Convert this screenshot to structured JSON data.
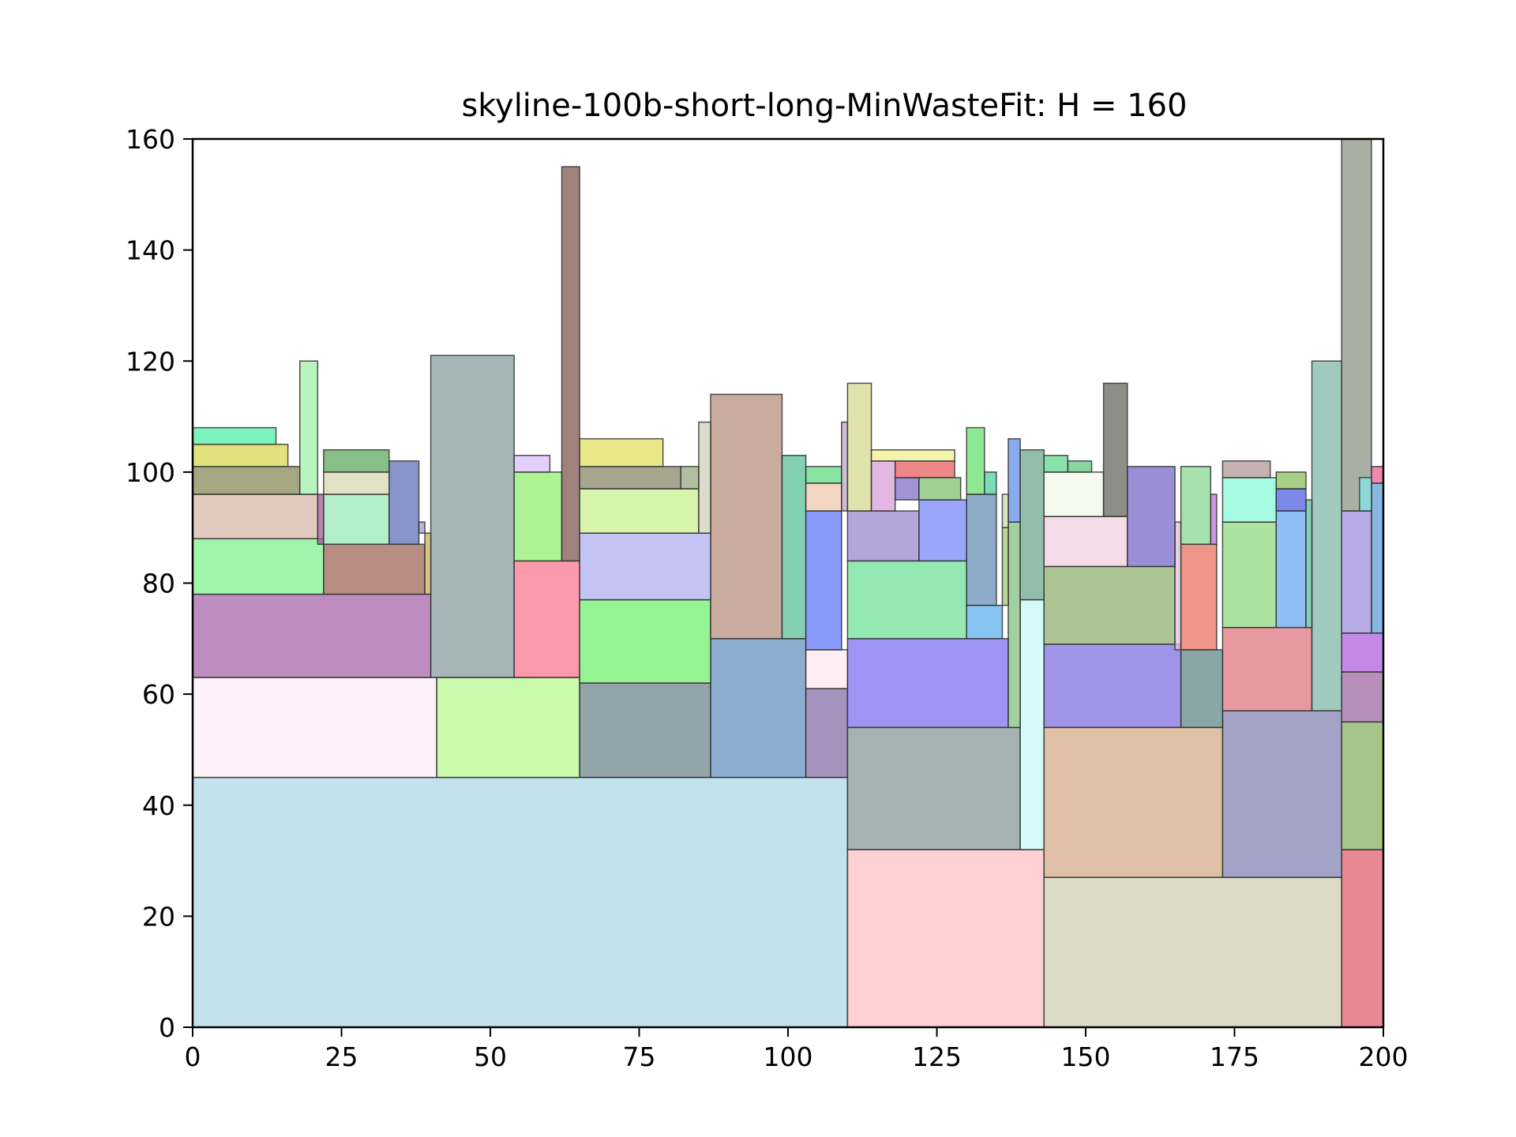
{
  "chart_data": {
    "type": "rectangles",
    "title": "skyline-100b-short-long-MinWasteFit: H = 160",
    "xlabel": "",
    "ylabel": "",
    "xlim": [
      0,
      200
    ],
    "ylim": [
      0,
      160
    ],
    "x_ticks": [
      "0",
      "25",
      "50",
      "75",
      "100",
      "125",
      "150",
      "175",
      "200"
    ],
    "y_ticks": [
      "0",
      "20",
      "40",
      "60",
      "80",
      "100",
      "120",
      "140",
      "160"
    ],
    "grid": false,
    "legend": "none",
    "rects": [
      {
        "x": 0,
        "y": 0,
        "w": 110,
        "h": 45,
        "color": "#add8e6"
      },
      {
        "x": 110,
        "y": 0,
        "w": 33,
        "h": 32,
        "color": "#ffc0c5"
      },
      {
        "x": 143,
        "y": 0,
        "w": 50,
        "h": 27,
        "color": "#cfcfb5"
      },
      {
        "x": 193,
        "y": 0,
        "w": 7,
        "h": 32,
        "color": "#e06070"
      },
      {
        "x": 0,
        "y": 45,
        "w": 41,
        "h": 18,
        "color": "#ffeef8"
      },
      {
        "x": 41,
        "y": 45,
        "w": 24,
        "h": 18,
        "color": "#b8f890"
      },
      {
        "x": 65,
        "y": 45,
        "w": 22,
        "h": 17,
        "color": "#6e868e"
      },
      {
        "x": 87,
        "y": 45,
        "w": 16,
        "h": 25,
        "color": "#6690c0"
      },
      {
        "x": 103,
        "y": 45,
        "w": 7,
        "h": 16,
        "color": "#8870a8"
      },
      {
        "x": 110,
        "y": 32,
        "w": 29,
        "h": 22,
        "color": "#889898"
      },
      {
        "x": 139,
        "y": 32,
        "w": 4,
        "h": 45,
        "color": "#c8f8f8"
      },
      {
        "x": 143,
        "y": 27,
        "w": 30,
        "h": 27,
        "color": "#d4aa88"
      },
      {
        "x": 173,
        "y": 27,
        "w": 20,
        "h": 30,
        "color": "#8484b4"
      },
      {
        "x": 193,
        "y": 32,
        "w": 7,
        "h": 23,
        "color": "#8ab060"
      },
      {
        "x": 0,
        "y": 63,
        "w": 40,
        "h": 15,
        "color": "#aa66aa"
      },
      {
        "x": 40,
        "y": 63,
        "w": 14,
        "h": 58,
        "color": "#889ea0"
      },
      {
        "x": 54,
        "y": 63,
        "w": 11,
        "h": 21,
        "color": "#fa7890"
      },
      {
        "x": 65,
        "y": 62,
        "w": 22,
        "h": 15,
        "color": "#70f070"
      },
      {
        "x": 87,
        "y": 70,
        "w": 12,
        "h": 44,
        "color": "#b8907e"
      },
      {
        "x": 99,
        "y": 70,
        "w": 4,
        "h": 33,
        "color": "#5ac098"
      },
      {
        "x": 103,
        "y": 61,
        "w": 7,
        "h": 7,
        "color": "#ffe8f0"
      },
      {
        "x": 103,
        "y": 68,
        "w": 6,
        "h": 25,
        "color": "#6078f8"
      },
      {
        "x": 110,
        "y": 54,
        "w": 27,
        "h": 16,
        "color": "#7e70f0"
      },
      {
        "x": 137,
        "y": 54,
        "w": 2,
        "h": 37,
        "color": "#84c080"
      },
      {
        "x": 143,
        "y": 54,
        "w": 23,
        "h": 15,
        "color": "#8070e0"
      },
      {
        "x": 166,
        "y": 54,
        "w": 7,
        "h": 14,
        "color": "#608a88"
      },
      {
        "x": 173,
        "y": 57,
        "w": 15,
        "h": 15,
        "color": "#e07880"
      },
      {
        "x": 188,
        "y": 57,
        "w": 5,
        "h": 63,
        "color": "#80b8a8"
      },
      {
        "x": 193,
        "y": 55,
        "w": 7,
        "h": 9,
        "color": "#a06aa0"
      },
      {
        "x": 193,
        "y": 64,
        "w": 7,
        "h": 7,
        "color": "#b060e0"
      },
      {
        "x": 0,
        "y": 78,
        "w": 22,
        "h": 10,
        "color": "#80f090"
      },
      {
        "x": 22,
        "y": 78,
        "w": 17,
        "h": 9,
        "color": "#a06858"
      },
      {
        "x": 39,
        "y": 78,
        "w": 1,
        "h": 11,
        "color": "#c8b060"
      },
      {
        "x": 54,
        "y": 84,
        "w": 8,
        "h": 16,
        "color": "#90f070"
      },
      {
        "x": 62,
        "y": 84,
        "w": 3,
        "h": 71,
        "color": "#805850"
      },
      {
        "x": 65,
        "y": 77,
        "w": 22,
        "h": 12,
        "color": "#b0b0f0"
      },
      {
        "x": 110,
        "y": 70,
        "w": 20,
        "h": 14,
        "color": "#70e098"
      },
      {
        "x": 130,
        "y": 70,
        "w": 6,
        "h": 6,
        "color": "#60b0f0"
      },
      {
        "x": 136,
        "y": 76,
        "w": 1,
        "h": 14,
        "color": "#a0c878"
      },
      {
        "x": 143,
        "y": 69,
        "w": 22,
        "h": 14,
        "color": "#90b070"
      },
      {
        "x": 165,
        "y": 68,
        "w": 1,
        "h": 23,
        "color": "#e0c0d0"
      },
      {
        "x": 166,
        "y": 68,
        "w": 6,
        "h": 19,
        "color": "#e87060"
      },
      {
        "x": 173,
        "y": 72,
        "w": 9,
        "h": 19,
        "color": "#90d880"
      },
      {
        "x": 182,
        "y": 72,
        "w": 5,
        "h": 21,
        "color": "#68a8f0"
      },
      {
        "x": 187,
        "y": 72,
        "w": 1,
        "h": 23,
        "color": "#60c0a0"
      },
      {
        "x": 193,
        "y": 71,
        "w": 5,
        "h": 22,
        "color": "#a090e0"
      },
      {
        "x": 198,
        "y": 71,
        "w": 2,
        "h": 27,
        "color": "#60a0d8"
      },
      {
        "x": 0,
        "y": 88,
        "w": 21,
        "h": 8,
        "color": "#d8b8a8"
      },
      {
        "x": 21,
        "y": 87,
        "w": 1,
        "h": 9,
        "color": "#a05898"
      },
      {
        "x": 22,
        "y": 87,
        "w": 11,
        "h": 9,
        "color": "#98e8b8"
      },
      {
        "x": 33,
        "y": 87,
        "w": 5,
        "h": 15,
        "color": "#6070b8"
      },
      {
        "x": 38,
        "y": 89,
        "w": 1,
        "h": 2,
        "color": "#a0a0d0"
      },
      {
        "x": 54,
        "y": 100,
        "w": 6,
        "h": 3,
        "color": "#d8c0f8"
      },
      {
        "x": 65,
        "y": 89,
        "w": 20,
        "h": 8,
        "color": "#c8f090"
      },
      {
        "x": 85,
        "y": 89,
        "w": 2,
        "h": 20,
        "color": "#d0d0b8"
      },
      {
        "x": 103,
        "y": 93,
        "w": 6,
        "h": 5,
        "color": "#f0c8b0"
      },
      {
        "x": 103,
        "y": 98,
        "w": 6,
        "h": 3,
        "color": "#60d880"
      },
      {
        "x": 109,
        "y": 93,
        "w": 1,
        "h": 16,
        "color": "#c0a8c8"
      },
      {
        "x": 110,
        "y": 84,
        "w": 12,
        "h": 9,
        "color": "#9888d0"
      },
      {
        "x": 122,
        "y": 84,
        "w": 8,
        "h": 11,
        "color": "#7888f8"
      },
      {
        "x": 130,
        "y": 76,
        "w": 5,
        "h": 20,
        "color": "#6890b8"
      },
      {
        "x": 130,
        "y": 96,
        "w": 3,
        "h": 12,
        "color": "#68e070"
      },
      {
        "x": 133,
        "y": 96,
        "w": 2,
        "h": 4,
        "color": "#50d0a0"
      },
      {
        "x": 137,
        "y": 91,
        "w": 2,
        "h": 15,
        "color": "#6090e8"
      },
      {
        "x": 139,
        "y": 77,
        "w": 4,
        "h": 27,
        "color": "#70a890"
      },
      {
        "x": 143,
        "y": 83,
        "w": 14,
        "h": 9,
        "color": "#f0d0e0"
      },
      {
        "x": 143,
        "y": 92,
        "w": 10,
        "h": 8,
        "color": "#f0f8e8"
      },
      {
        "x": 143,
        "y": 100,
        "w": 4,
        "h": 3,
        "color": "#60d890"
      },
      {
        "x": 147,
        "y": 100,
        "w": 4,
        "h": 2,
        "color": "#60c880"
      },
      {
        "x": 153,
        "y": 92,
        "w": 4,
        "h": 24,
        "color": "#686860"
      },
      {
        "x": 157,
        "y": 83,
        "w": 8,
        "h": 18,
        "color": "#7868c8"
      },
      {
        "x": 166,
        "y": 87,
        "w": 5,
        "h": 14,
        "color": "#88d890"
      },
      {
        "x": 171,
        "y": 87,
        "w": 1,
        "h": 9,
        "color": "#c070d8"
      },
      {
        "x": 173,
        "y": 91,
        "w": 9,
        "h": 8,
        "color": "#88f8d8"
      },
      {
        "x": 173,
        "y": 99,
        "w": 8,
        "h": 3,
        "color": "#b09898"
      },
      {
        "x": 182,
        "y": 93,
        "w": 5,
        "h": 4,
        "color": "#5060e0"
      },
      {
        "x": 182,
        "y": 97,
        "w": 5,
        "h": 3,
        "color": "#88c060"
      },
      {
        "x": 193,
        "y": 93,
        "w": 5,
        "h": 67,
        "color": "#8e9484"
      },
      {
        "x": 198,
        "y": 98,
        "w": 2,
        "h": 3,
        "color": "#e86090"
      },
      {
        "x": 196,
        "y": 93,
        "w": 2,
        "h": 6,
        "color": "#80e8e8"
      },
      {
        "x": 0,
        "y": 96,
        "w": 18,
        "h": 5,
        "color": "#888858"
      },
      {
        "x": 0,
        "y": 101,
        "w": 16,
        "h": 4,
        "color": "#d8d850"
      },
      {
        "x": 0,
        "y": 105,
        "w": 14,
        "h": 3,
        "color": "#50f0a8"
      },
      {
        "x": 18,
        "y": 96,
        "w": 3,
        "h": 24,
        "color": "#a0f0a8"
      },
      {
        "x": 22,
        "y": 96,
        "w": 11,
        "h": 4,
        "color": "#d8d8b0"
      },
      {
        "x": 22,
        "y": 100,
        "w": 11,
        "h": 4,
        "color": "#60a860"
      },
      {
        "x": 65,
        "y": 97,
        "w": 17,
        "h": 4,
        "color": "#888868"
      },
      {
        "x": 65,
        "y": 101,
        "w": 14,
        "h": 5,
        "color": "#e0e060"
      },
      {
        "x": 82,
        "y": 97,
        "w": 3,
        "h": 4,
        "color": "#98a880"
      },
      {
        "x": 110,
        "y": 93,
        "w": 4,
        "h": 23,
        "color": "#d8d890"
      },
      {
        "x": 114,
        "y": 93,
        "w": 4,
        "h": 9,
        "color": "#d8a0d8"
      },
      {
        "x": 118,
        "y": 95,
        "w": 4,
        "h": 4,
        "color": "#8070c8"
      },
      {
        "x": 118,
        "y": 99,
        "w": 10,
        "h": 3,
        "color": "#e86060"
      },
      {
        "x": 114,
        "y": 102,
        "w": 14,
        "h": 2,
        "color": "#f0f090"
      },
      {
        "x": 122,
        "y": 95,
        "w": 7,
        "h": 4,
        "color": "#80c070"
      },
      {
        "x": 136,
        "y": 90,
        "w": 1,
        "h": 6,
        "color": "#c8e0a8"
      }
    ]
  }
}
